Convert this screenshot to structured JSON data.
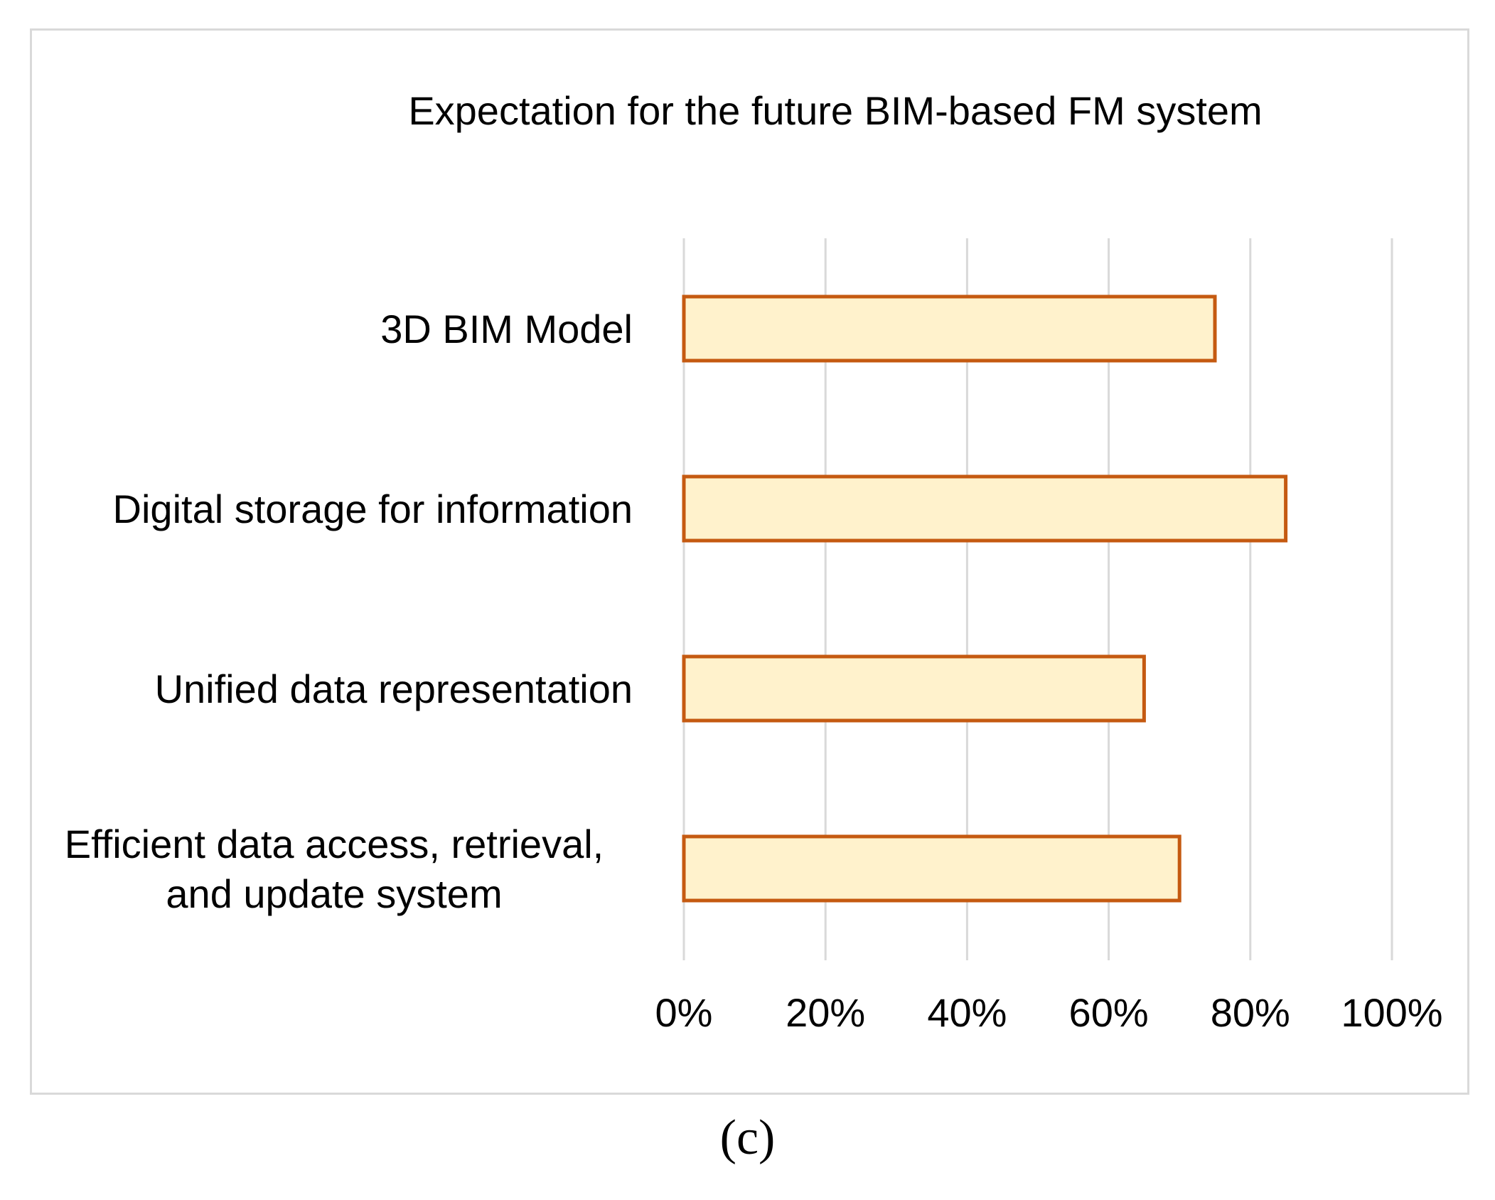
{
  "colors": {
    "bar_fill": "#FFF2CC",
    "bar_stroke": "#C55A11",
    "grid": "#d9d9d9",
    "frame": "#d9d9d9"
  },
  "chart_data": {
    "type": "bar",
    "orientation": "horizontal",
    "title": "Expectation for the future BIM-based FM system",
    "categories": [
      [
        "3D BIM Model"
      ],
      [
        "Digital storage for information"
      ],
      [
        "Unified data representation"
      ],
      [
        "Efficient data access, retrieval,",
        "and update system"
      ]
    ],
    "values": [
      75,
      85,
      65,
      70
    ],
    "x_ticks": [
      "0%",
      "20%",
      "40%",
      "60%",
      "80%",
      "100%"
    ],
    "xlim": [
      0,
      100
    ],
    "grid": true,
    "legend": "none",
    "xlabel": "",
    "ylabel": ""
  },
  "caption": "(c)"
}
